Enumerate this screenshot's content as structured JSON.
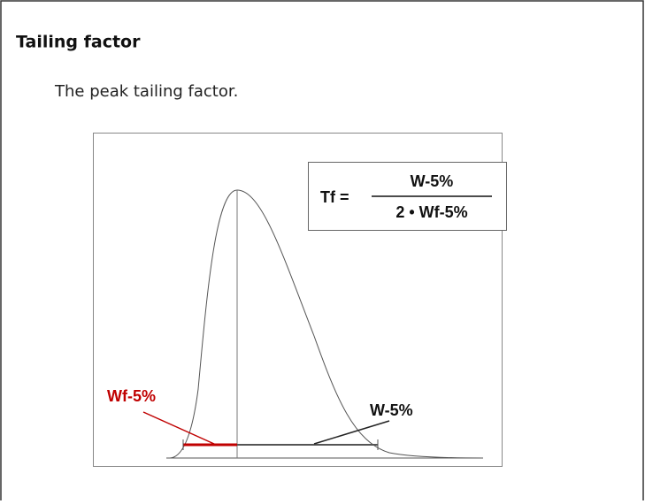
{
  "heading": "Tailing factor",
  "description": "The peak tailing factor.",
  "diagram": {
    "formula": {
      "lhs": "Tf =",
      "numerator": "W-5%",
      "denominator": "2 • Wf-5%"
    },
    "labels": {
      "front_width": "Wf-5%",
      "width": "W-5%"
    }
  }
}
